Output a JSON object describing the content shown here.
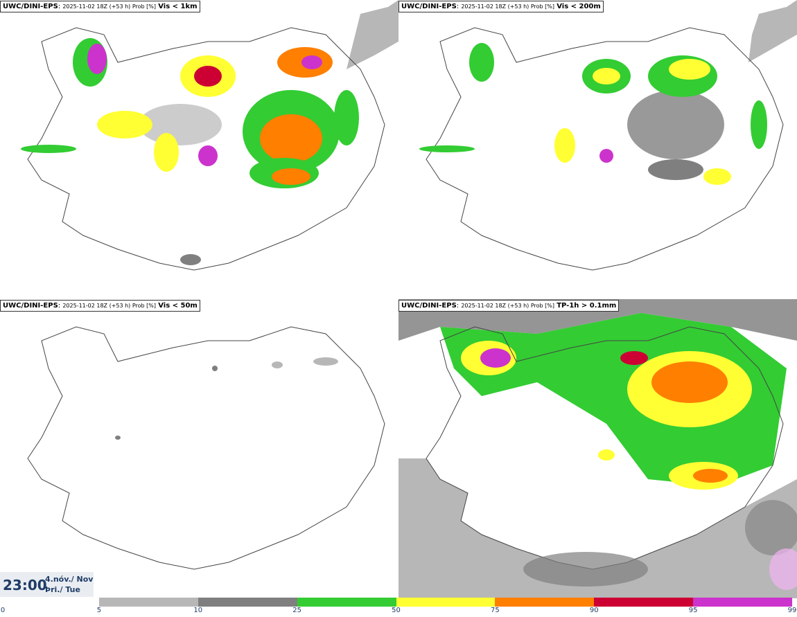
{
  "panels": [
    {
      "model": "UWC/DINI-EPS",
      "run": "2025-11-02 18Z (+53 h) Prob [%]",
      "variable": "Vis < 1km"
    },
    {
      "model": "UWC/DINI-EPS",
      "run": "2025-11-02 18Z (+53 h) Prob [%]",
      "variable": "Vis < 200m"
    },
    {
      "model": "UWC/DINI-EPS",
      "run": "2025-11-02 18Z (+53 h) Prob [%]",
      "variable": "Vis < 50m"
    },
    {
      "model": "UWC/DINI-EPS",
      "run": "2025-11-02 18Z (+53 h) Prob [%]",
      "variable": "TP-1h > 0.1mm"
    }
  ],
  "timestamp": {
    "time": "23:00",
    "date_line1": "4.nóv./ Nov",
    "date_line2": "Þri./ Tue"
  },
  "colorbar": {
    "ticks": [
      "0",
      "5",
      "10",
      "25",
      "50",
      "75",
      "90",
      "95",
      "99"
    ],
    "colors": [
      "#ffffff",
      "#b7b7b7",
      "#7f7f7f",
      "#33cc33",
      "#ffff33",
      "#ff7f00",
      "#cc0033",
      "#cc33cc",
      "#f2b3f2"
    ]
  }
}
